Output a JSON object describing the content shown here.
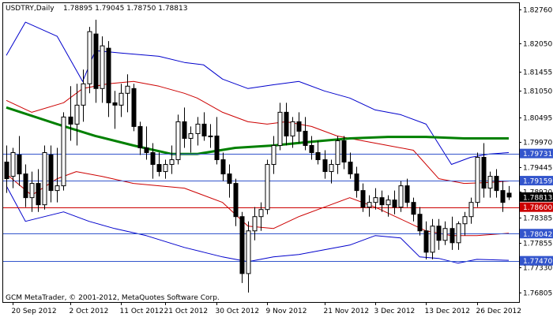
{
  "header": {
    "symbol": "USDTRY,Daily",
    "ohlc": "1.78895 1.79045 1.78750 1.78813"
  },
  "footer": {
    "copyright": "GCM MetaTrader, © 2001-2012, MetaQuotes Software Corp."
  },
  "colors": {
    "candle_stroke": "#000000",
    "bull_fill": "#ffffff",
    "bear_fill": "#000000",
    "bollinger_outer": "#0000cc",
    "bollinger_inner": "#cc0000",
    "moving_average": "#008000",
    "hline_blue": "#3355cc",
    "hline_red": "#cc0000",
    "label_blue": "#3355cc",
    "label_red": "#cc0000",
    "label_current": "#000000"
  },
  "chart_data": {
    "type": "candlestick",
    "symbol": "USDTRY",
    "timeframe": "Daily",
    "ylim": [
      1.766,
      1.829
    ],
    "y_ticks": [
      {
        "value": 1.8276,
        "label": "1.82760"
      },
      {
        "value": 1.8205,
        "label": "1.82050"
      },
      {
        "value": 1.81455,
        "label": "1.81455"
      },
      {
        "value": 1.8105,
        "label": "1.81050"
      },
      {
        "value": 1.80495,
        "label": "1.80495"
      },
      {
        "value": 1.7997,
        "label": "1.79970"
      },
      {
        "value": 1.79445,
        "label": "1.79445"
      },
      {
        "value": 1.7892,
        "label": "1.78920"
      },
      {
        "value": 1.78385,
        "label": "1.78385"
      },
      {
        "value": 1.77855,
        "label": "1.77855"
      },
      {
        "value": 1.7733,
        "label": "1.77330"
      },
      {
        "value": 1.76805,
        "label": "1.76805"
      }
    ],
    "x_labels": [
      {
        "bar": 1,
        "label": "20 Sep 2012"
      },
      {
        "bar": 10,
        "label": "2 Oct 2012"
      },
      {
        "bar": 18,
        "label": "11 Oct 2012"
      },
      {
        "bar": 25,
        "label": "21 Oct 2012"
      },
      {
        "bar": 33,
        "label": "30 Oct 2012"
      },
      {
        "bar": 41,
        "label": "9 Nov 2012"
      },
      {
        "bar": 50,
        "label": "21 Nov 2012"
      },
      {
        "bar": 58,
        "label": "3 Dec 2012"
      },
      {
        "bar": 66,
        "label": "13 Dec 2012"
      },
      {
        "bar": 74,
        "label": "26 Dec 2012"
      }
    ],
    "candles": [
      {
        "o": 1.7955,
        "h": 1.799,
        "l": 1.789,
        "c": 1.792
      },
      {
        "o": 1.7925,
        "h": 1.7985,
        "l": 1.79,
        "c": 1.7975
      },
      {
        "o": 1.797,
        "h": 1.801,
        "l": 1.7905,
        "c": 1.793
      },
      {
        "o": 1.793,
        "h": 1.795,
        "l": 1.786,
        "c": 1.788
      },
      {
        "o": 1.788,
        "h": 1.7935,
        "l": 1.785,
        "c": 1.791
      },
      {
        "o": 1.791,
        "h": 1.794,
        "l": 1.785,
        "c": 1.7865
      },
      {
        "o": 1.7865,
        "h": 1.799,
        "l": 1.7855,
        "c": 1.7975
      },
      {
        "o": 1.797,
        "h": 1.799,
        "l": 1.787,
        "c": 1.7895
      },
      {
        "o": 1.7895,
        "h": 1.7985,
        "l": 1.787,
        "c": 1.7905
      },
      {
        "o": 1.7905,
        "h": 1.806,
        "l": 1.7895,
        "c": 1.805
      },
      {
        "o": 1.805,
        "h": 1.8115,
        "l": 1.8,
        "c": 1.8035
      },
      {
        "o": 1.8035,
        "h": 1.812,
        "l": 1.799,
        "c": 1.8075
      },
      {
        "o": 1.8075,
        "h": 1.815,
        "l": 1.804,
        "c": 1.812
      },
      {
        "o": 1.812,
        "h": 1.824,
        "l": 1.81,
        "c": 1.823
      },
      {
        "o": 1.8225,
        "h": 1.8255,
        "l": 1.808,
        "c": 1.811
      },
      {
        "o": 1.811,
        "h": 1.822,
        "l": 1.808,
        "c": 1.82
      },
      {
        "o": 1.8195,
        "h": 1.821,
        "l": 1.805,
        "c": 1.808
      },
      {
        "o": 1.808,
        "h": 1.8105,
        "l": 1.8025,
        "c": 1.8075
      },
      {
        "o": 1.8075,
        "h": 1.812,
        "l": 1.805,
        "c": 1.81
      },
      {
        "o": 1.81,
        "h": 1.814,
        "l": 1.806,
        "c": 1.8115
      },
      {
        "o": 1.811,
        "h": 1.812,
        "l": 1.802,
        "c": 1.803
      },
      {
        "o": 1.803,
        "h": 1.804,
        "l": 1.797,
        "c": 1.7985
      },
      {
        "o": 1.7985,
        "h": 1.803,
        "l": 1.796,
        "c": 1.7975
      },
      {
        "o": 1.7975,
        "h": 1.7995,
        "l": 1.792,
        "c": 1.795
      },
      {
        "o": 1.795,
        "h": 1.7975,
        "l": 1.7925,
        "c": 1.7935
      },
      {
        "o": 1.7935,
        "h": 1.796,
        "l": 1.792,
        "c": 1.795
      },
      {
        "o": 1.795,
        "h": 1.799,
        "l": 1.793,
        "c": 1.796
      },
      {
        "o": 1.796,
        "h": 1.8055,
        "l": 1.795,
        "c": 1.804
      },
      {
        "o": 1.804,
        "h": 1.807,
        "l": 1.7985,
        "c": 1.8005
      },
      {
        "o": 1.8005,
        "h": 1.803,
        "l": 1.7975,
        "c": 1.8015
      },
      {
        "o": 1.8015,
        "h": 1.805,
        "l": 1.799,
        "c": 1.8035
      },
      {
        "o": 1.8035,
        "h": 1.806,
        "l": 1.8,
        "c": 1.801
      },
      {
        "o": 1.801,
        "h": 1.8035,
        "l": 1.7985,
        "c": 1.801
      },
      {
        "o": 1.801,
        "h": 1.805,
        "l": 1.795,
        "c": 1.796
      },
      {
        "o": 1.796,
        "h": 1.7975,
        "l": 1.7915,
        "c": 1.793
      },
      {
        "o": 1.793,
        "h": 1.795,
        "l": 1.788,
        "c": 1.791
      },
      {
        "o": 1.791,
        "h": 1.792,
        "l": 1.782,
        "c": 1.784
      },
      {
        "o": 1.784,
        "h": 1.785,
        "l": 1.77,
        "c": 1.772
      },
      {
        "o": 1.772,
        "h": 1.783,
        "l": 1.768,
        "c": 1.781
      },
      {
        "o": 1.781,
        "h": 1.786,
        "l": 1.779,
        "c": 1.784
      },
      {
        "o": 1.784,
        "h": 1.787,
        "l": 1.781,
        "c": 1.7855
      },
      {
        "o": 1.7855,
        "h": 1.796,
        "l": 1.7845,
        "c": 1.795
      },
      {
        "o": 1.795,
        "h": 1.801,
        "l": 1.793,
        "c": 1.799
      },
      {
        "o": 1.799,
        "h": 1.808,
        "l": 1.798,
        "c": 1.806
      },
      {
        "o": 1.806,
        "h": 1.808,
        "l": 1.799,
        "c": 1.801
      },
      {
        "o": 1.801,
        "h": 1.805,
        "l": 1.7985,
        "c": 1.804
      },
      {
        "o": 1.804,
        "h": 1.806,
        "l": 1.7995,
        "c": 1.802
      },
      {
        "o": 1.802,
        "h": 1.805,
        "l": 1.798,
        "c": 1.799
      },
      {
        "o": 1.799,
        "h": 1.801,
        "l": 1.796,
        "c": 1.7975
      },
      {
        "o": 1.7975,
        "h": 1.8,
        "l": 1.795,
        "c": 1.796
      },
      {
        "o": 1.796,
        "h": 1.798,
        "l": 1.792,
        "c": 1.7935
      },
      {
        "o": 1.7935,
        "h": 1.796,
        "l": 1.791,
        "c": 1.795
      },
      {
        "o": 1.795,
        "h": 1.801,
        "l": 1.793,
        "c": 1.8
      },
      {
        "o": 1.8,
        "h": 1.801,
        "l": 1.794,
        "c": 1.7955
      },
      {
        "o": 1.7955,
        "h": 1.7975,
        "l": 1.792,
        "c": 1.793
      },
      {
        "o": 1.793,
        "h": 1.7945,
        "l": 1.788,
        "c": 1.7895
      },
      {
        "o": 1.7895,
        "h": 1.791,
        "l": 1.785,
        "c": 1.786
      },
      {
        "o": 1.786,
        "h": 1.7885,
        "l": 1.784,
        "c": 1.787
      },
      {
        "o": 1.787,
        "h": 1.79,
        "l": 1.7855,
        "c": 1.788
      },
      {
        "o": 1.788,
        "h": 1.7895,
        "l": 1.785,
        "c": 1.7865
      },
      {
        "o": 1.7865,
        "h": 1.7885,
        "l": 1.784,
        "c": 1.7875
      },
      {
        "o": 1.7875,
        "h": 1.7895,
        "l": 1.7845,
        "c": 1.786
      },
      {
        "o": 1.786,
        "h": 1.7915,
        "l": 1.785,
        "c": 1.7905
      },
      {
        "o": 1.7905,
        "h": 1.792,
        "l": 1.786,
        "c": 1.787
      },
      {
        "o": 1.787,
        "h": 1.788,
        "l": 1.783,
        "c": 1.7845
      },
      {
        "o": 1.7845,
        "h": 1.786,
        "l": 1.78,
        "c": 1.781
      },
      {
        "o": 1.781,
        "h": 1.783,
        "l": 1.775,
        "c": 1.7765
      },
      {
        "o": 1.7765,
        "h": 1.7835,
        "l": 1.775,
        "c": 1.782
      },
      {
        "o": 1.782,
        "h": 1.7835,
        "l": 1.777,
        "c": 1.779
      },
      {
        "o": 1.779,
        "h": 1.783,
        "l": 1.778,
        "c": 1.7815
      },
      {
        "o": 1.7815,
        "h": 1.784,
        "l": 1.777,
        "c": 1.7785
      },
      {
        "o": 1.7785,
        "h": 1.783,
        "l": 1.777,
        "c": 1.7825
      },
      {
        "o": 1.7825,
        "h": 1.785,
        "l": 1.78,
        "c": 1.784
      },
      {
        "o": 1.784,
        "h": 1.788,
        "l": 1.7825,
        "c": 1.787
      },
      {
        "o": 1.787,
        "h": 1.7975,
        "l": 1.786,
        "c": 1.7965
      },
      {
        "o": 1.7965,
        "h": 1.7995,
        "l": 1.788,
        "c": 1.79
      },
      {
        "o": 1.79,
        "h": 1.7935,
        "l": 1.788,
        "c": 1.7925
      },
      {
        "o": 1.7925,
        "h": 1.794,
        "l": 1.788,
        "c": 1.7895
      },
      {
        "o": 1.7895,
        "h": 1.7915,
        "l": 1.785,
        "c": 1.787
      },
      {
        "o": 1.78895,
        "h": 1.79045,
        "l": 1.7875,
        "c": 1.78813
      }
    ],
    "moving_average": [
      {
        "bar": 0,
        "v": 1.807
      },
      {
        "bar": 8,
        "v": 1.8035
      },
      {
        "bar": 14,
        "v": 1.801
      },
      {
        "bar": 20,
        "v": 1.799
      },
      {
        "bar": 26,
        "v": 1.7972
      },
      {
        "bar": 30,
        "v": 1.7972
      },
      {
        "bar": 36,
        "v": 1.7985
      },
      {
        "bar": 42,
        "v": 1.799
      },
      {
        "bar": 48,
        "v": 1.7998
      },
      {
        "bar": 54,
        "v": 1.8005
      },
      {
        "bar": 60,
        "v": 1.8008
      },
      {
        "bar": 66,
        "v": 1.8008
      },
      {
        "bar": 72,
        "v": 1.8005
      },
      {
        "bar": 79,
        "v": 1.8005
      }
    ],
    "bollinger_upper_outer": [
      {
        "bar": 0,
        "v": 1.818
      },
      {
        "bar": 3,
        "v": 1.825
      },
      {
        "bar": 8,
        "v": 1.822
      },
      {
        "bar": 12,
        "v": 1.8125
      },
      {
        "bar": 14,
        "v": 1.819
      },
      {
        "bar": 18,
        "v": 1.8185
      },
      {
        "bar": 24,
        "v": 1.8178
      },
      {
        "bar": 28,
        "v": 1.8165
      },
      {
        "bar": 31,
        "v": 1.816
      },
      {
        "bar": 34,
        "v": 1.813
      },
      {
        "bar": 38,
        "v": 1.811
      },
      {
        "bar": 42,
        "v": 1.8118
      },
      {
        "bar": 46,
        "v": 1.8125
      },
      {
        "bar": 50,
        "v": 1.8105
      },
      {
        "bar": 54,
        "v": 1.809
      },
      {
        "bar": 58,
        "v": 1.8065
      },
      {
        "bar": 62,
        "v": 1.8055
      },
      {
        "bar": 66,
        "v": 1.8035
      },
      {
        "bar": 70,
        "v": 1.795
      },
      {
        "bar": 73,
        "v": 1.7965
      },
      {
        "bar": 76,
        "v": 1.7972
      },
      {
        "bar": 79,
        "v": 1.7975
      }
    ],
    "bollinger_upper_inner": [
      {
        "bar": 0,
        "v": 1.8085
      },
      {
        "bar": 4,
        "v": 1.806
      },
      {
        "bar": 9,
        "v": 1.808
      },
      {
        "bar": 12,
        "v": 1.811
      },
      {
        "bar": 16,
        "v": 1.812
      },
      {
        "bar": 20,
        "v": 1.8125
      },
      {
        "bar": 24,
        "v": 1.8115
      },
      {
        "bar": 28,
        "v": 1.81
      },
      {
        "bar": 30,
        "v": 1.809
      },
      {
        "bar": 34,
        "v": 1.806
      },
      {
        "bar": 38,
        "v": 1.804
      },
      {
        "bar": 41,
        "v": 1.8035
      },
      {
        "bar": 44,
        "v": 1.804
      },
      {
        "bar": 48,
        "v": 1.803
      },
      {
        "bar": 52,
        "v": 1.801
      },
      {
        "bar": 56,
        "v": 1.8
      },
      {
        "bar": 60,
        "v": 1.799
      },
      {
        "bar": 64,
        "v": 1.798
      },
      {
        "bar": 68,
        "v": 1.792
      },
      {
        "bar": 72,
        "v": 1.791
      },
      {
        "bar": 76,
        "v": 1.7912
      },
      {
        "bar": 79,
        "v": 1.7915
      }
    ],
    "bollinger_lower_inner": [
      {
        "bar": 0,
        "v": 1.793
      },
      {
        "bar": 4,
        "v": 1.7885
      },
      {
        "bar": 8,
        "v": 1.792
      },
      {
        "bar": 11,
        "v": 1.7935
      },
      {
        "bar": 15,
        "v": 1.7925
      },
      {
        "bar": 20,
        "v": 1.791
      },
      {
        "bar": 24,
        "v": 1.7905
      },
      {
        "bar": 28,
        "v": 1.79
      },
      {
        "bar": 30,
        "v": 1.789
      },
      {
        "bar": 34,
        "v": 1.787
      },
      {
        "bar": 38,
        "v": 1.782
      },
      {
        "bar": 42,
        "v": 1.7815
      },
      {
        "bar": 46,
        "v": 1.784
      },
      {
        "bar": 50,
        "v": 1.786
      },
      {
        "bar": 54,
        "v": 1.788
      },
      {
        "bar": 58,
        "v": 1.786
      },
      {
        "bar": 62,
        "v": 1.7835
      },
      {
        "bar": 66,
        "v": 1.781
      },
      {
        "bar": 70,
        "v": 1.78
      },
      {
        "bar": 74,
        "v": 1.78
      },
      {
        "bar": 79,
        "v": 1.7805
      }
    ],
    "bollinger_lower_outer": [
      {
        "bar": 0,
        "v": 1.7905
      },
      {
        "bar": 3,
        "v": 1.783
      },
      {
        "bar": 6,
        "v": 1.784
      },
      {
        "bar": 9,
        "v": 1.785
      },
      {
        "bar": 13,
        "v": 1.783
      },
      {
        "bar": 17,
        "v": 1.7815
      },
      {
        "bar": 22,
        "v": 1.78
      },
      {
        "bar": 28,
        "v": 1.7775
      },
      {
        "bar": 31,
        "v": 1.7765
      },
      {
        "bar": 34,
        "v": 1.7755
      },
      {
        "bar": 38,
        "v": 1.7745
      },
      {
        "bar": 42,
        "v": 1.7755
      },
      {
        "bar": 46,
        "v": 1.776
      },
      {
        "bar": 50,
        "v": 1.777
      },
      {
        "bar": 54,
        "v": 1.778
      },
      {
        "bar": 58,
        "v": 1.78
      },
      {
        "bar": 62,
        "v": 1.7795
      },
      {
        "bar": 65,
        "v": 1.7755
      },
      {
        "bar": 68,
        "v": 1.7752
      },
      {
        "bar": 71,
        "v": 1.7742
      },
      {
        "bar": 74,
        "v": 1.775
      },
      {
        "bar": 79,
        "v": 1.7748
      }
    ],
    "horizontal_lines": [
      {
        "value": 1.79731,
        "label": "1.79731",
        "color": "#3355cc"
      },
      {
        "value": 1.79159,
        "label": "1.79159",
        "color": "#3355cc"
      },
      {
        "value": 1.786,
        "label": "1.78600",
        "color": "#cc0000"
      },
      {
        "value": 1.78042,
        "label": "1.78042",
        "color": "#3355cc"
      },
      {
        "value": 1.7747,
        "label": "1.77470",
        "color": "#3355cc"
      }
    ],
    "current_price": {
      "value": 1.78813,
      "label": "1.78813"
    }
  }
}
